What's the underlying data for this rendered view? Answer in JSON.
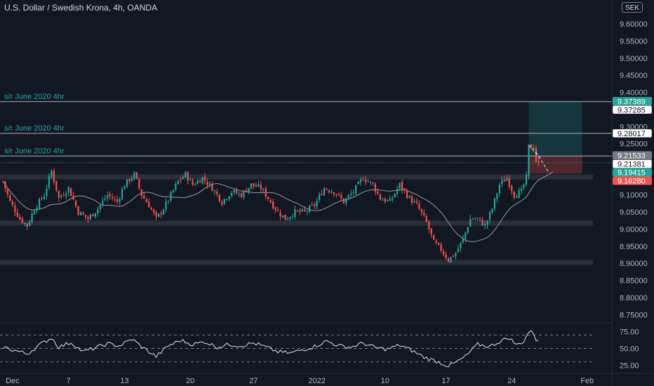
{
  "header": {
    "title": "U.S. Dollar / Swedish Krona, 4h, OANDA",
    "currency": "SEK"
  },
  "chart_data": {
    "type": "candlestick",
    "symbol": "USDSEK",
    "timeframe": "4h",
    "source": "OANDA",
    "price_axis": {
      "range": [
        8.73,
        9.67
      ],
      "ticks": [
        "9.60000",
        "9.55000",
        "9.50000",
        "9.45000",
        "9.40000",
        "9.35000",
        "9.30000",
        "9.25000",
        "9.20000",
        "9.15000",
        "9.10000",
        "9.05000",
        "9.00000",
        "8.95000",
        "8.90000",
        "8.85000",
        "8.80000",
        "8.75000"
      ]
    },
    "time_axis": {
      "labels": [
        {
          "label": "Dec",
          "bar": 4
        },
        {
          "label": "7",
          "bar": 27
        },
        {
          "label": "13",
          "bar": 50
        },
        {
          "label": "20",
          "bar": 77
        },
        {
          "label": "27",
          "bar": 103
        },
        {
          "label": "2022",
          "bar": 129
        },
        {
          "label": "10",
          "bar": 157
        },
        {
          "label": "17",
          "bar": 182
        },
        {
          "label": "24",
          "bar": 209
        },
        {
          "label": "Feb",
          "bar": 240
        }
      ]
    },
    "price_labels": [
      {
        "value": 9.37389,
        "text": "9.37389",
        "style": "green"
      },
      {
        "value": 9.37285,
        "text": "9.37285",
        "style": "white"
      },
      {
        "value": 9.28017,
        "text": "9.28017",
        "style": "white"
      },
      {
        "value": 9.21533,
        "text": "9.21533",
        "style": "gray"
      },
      {
        "value": 9.21381,
        "text": "9.21381",
        "style": "white"
      },
      {
        "value": 9.19415,
        "text": "9.19415",
        "style": "green"
      },
      {
        "value": 9.1628,
        "text": "9.16280",
        "style": "red"
      }
    ],
    "horizontal_lines": [
      {
        "value": 9.37285,
        "label": "s/r June 2020 4hr"
      },
      {
        "value": 9.28017,
        "label": "s/r June 2020 4hr"
      },
      {
        "value": 9.21381,
        "label": "s/r June 2020 4hr"
      }
    ],
    "zones": [
      {
        "from": 9.145,
        "to": 9.16
      },
      {
        "from": 9.01,
        "to": 9.025
      },
      {
        "from": 8.895,
        "to": 8.91
      }
    ],
    "position": {
      "entry": 9.2138,
      "target": 9.3739,
      "stop": 9.1628,
      "start_bar": 216,
      "end_bar": 238
    },
    "current_price": 9.19415,
    "rsi": {
      "range": [
        15,
        85
      ],
      "levels": [
        70,
        50,
        30
      ],
      "ticks": [
        "75.00",
        "50.00",
        "25.00"
      ]
    },
    "anchors": [
      [
        0,
        9.14
      ],
      [
        3,
        9.08
      ],
      [
        7,
        9.03
      ],
      [
        10,
        9.01
      ],
      [
        13,
        9.06
      ],
      [
        17,
        9.1
      ],
      [
        20,
        9.17
      ],
      [
        23,
        9.09
      ],
      [
        27,
        9.12
      ],
      [
        31,
        9.05
      ],
      [
        35,
        9.03
      ],
      [
        39,
        9.06
      ],
      [
        43,
        9.1
      ],
      [
        47,
        9.08
      ],
      [
        50,
        9.13
      ],
      [
        54,
        9.16
      ],
      [
        57,
        9.1
      ],
      [
        60,
        9.07
      ],
      [
        63,
        9.03
      ],
      [
        66,
        9.06
      ],
      [
        69,
        9.1
      ],
      [
        72,
        9.14
      ],
      [
        75,
        9.16
      ],
      [
        78,
        9.13
      ],
      [
        82,
        9.15
      ],
      [
        86,
        9.12
      ],
      [
        90,
        9.08
      ],
      [
        94,
        9.11
      ],
      [
        98,
        9.1
      ],
      [
        102,
        9.13
      ],
      [
        106,
        9.12
      ],
      [
        110,
        9.08
      ],
      [
        113,
        9.05
      ],
      [
        116,
        9.03
      ],
      [
        120,
        9.05
      ],
      [
        124,
        9.05
      ],
      [
        128,
        9.07
      ],
      [
        132,
        9.12
      ],
      [
        136,
        9.11
      ],
      [
        140,
        9.08
      ],
      [
        144,
        9.11
      ],
      [
        148,
        9.15
      ],
      [
        152,
        9.13
      ],
      [
        155,
        9.09
      ],
      [
        159,
        9.08
      ],
      [
        163,
        9.13
      ],
      [
        167,
        9.09
      ],
      [
        170,
        9.07
      ],
      [
        174,
        9.02
      ],
      [
        177,
        8.96
      ],
      [
        180,
        8.94
      ],
      [
        183,
        8.91
      ],
      [
        186,
        8.93
      ],
      [
        189,
        8.97
      ],
      [
        192,
        9.03
      ],
      [
        195,
        9.03
      ],
      [
        198,
        9.01
      ],
      [
        201,
        9.06
      ],
      [
        204,
        9.13
      ],
      [
        207,
        9.15
      ],
      [
        210,
        9.1
      ],
      [
        213,
        9.11
      ],
      [
        215,
        9.15
      ],
      [
        216,
        9.24
      ],
      [
        218,
        9.24
      ],
      [
        219,
        9.2
      ],
      [
        220,
        9.19
      ]
    ],
    "rsi_anchors": [
      [
        0,
        52
      ],
      [
        5,
        47
      ],
      [
        10,
        42
      ],
      [
        15,
        55
      ],
      [
        20,
        66
      ],
      [
        23,
        52
      ],
      [
        28,
        59
      ],
      [
        33,
        45
      ],
      [
        38,
        51
      ],
      [
        43,
        57
      ],
      [
        48,
        54
      ],
      [
        53,
        64
      ],
      [
        58,
        50
      ],
      [
        63,
        38
      ],
      [
        68,
        54
      ],
      [
        73,
        62
      ],
      [
        78,
        56
      ],
      [
        83,
        60
      ],
      [
        88,
        52
      ],
      [
        93,
        56
      ],
      [
        98,
        54
      ],
      [
        103,
        58
      ],
      [
        108,
        52
      ],
      [
        113,
        45
      ],
      [
        118,
        43
      ],
      [
        123,
        48
      ],
      [
        128,
        53
      ],
      [
        133,
        61
      ],
      [
        138,
        54
      ],
      [
        143,
        52
      ],
      [
        148,
        58
      ],
      [
        153,
        51
      ],
      [
        158,
        49
      ],
      [
        163,
        55
      ],
      [
        168,
        47
      ],
      [
        173,
        37
      ],
      [
        178,
        31
      ],
      [
        183,
        24
      ],
      [
        186,
        29
      ],
      [
        190,
        38
      ],
      [
        195,
        56
      ],
      [
        200,
        53
      ],
      [
        205,
        62
      ],
      [
        208,
        66
      ],
      [
        211,
        55
      ],
      [
        214,
        61
      ],
      [
        216,
        75
      ],
      [
        218,
        73
      ],
      [
        219,
        63
      ],
      [
        220,
        64
      ]
    ]
  }
}
